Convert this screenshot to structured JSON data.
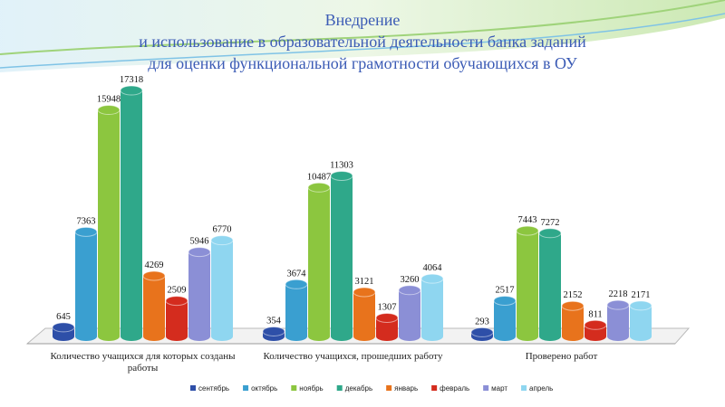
{
  "chart_data": {
    "type": "bar",
    "title": [
      "Внедрение",
      "и использование в образовательной деятельности банка заданий",
      "для оценки функциональной грамотности обучающихся в ОУ"
    ],
    "categories": [
      "Количество учащихся для которых созданы работы",
      "Количество учащихся, прошедших работу",
      "Проверено работ"
    ],
    "series": [
      {
        "name": "сентябрь",
        "color": "#2e4fa8",
        "values": [
          645,
          354,
          293
        ]
      },
      {
        "name": "октябрь",
        "color": "#3a9fd0",
        "values": [
          7363,
          3674,
          2517
        ]
      },
      {
        "name": "ноябрь",
        "color": "#8cc63f",
        "values": [
          15948,
          10487,
          7443
        ]
      },
      {
        "name": "декабрь",
        "color": "#2fa88a",
        "values": [
          17318,
          11303,
          7272
        ]
      },
      {
        "name": "январь",
        "color": "#e8731c",
        "values": [
          4269,
          3121,
          2152
        ]
      },
      {
        "name": "февраль",
        "color": "#d42c1e",
        "values": [
          2509,
          1307,
          811
        ]
      },
      {
        "name": "март",
        "color": "#8b8fd6",
        "values": [
          5946,
          3260,
          2218
        ]
      },
      {
        "name": "апрель",
        "color": "#8fd6f0",
        "values": [
          6770,
          4064,
          2171
        ]
      }
    ]
  }
}
